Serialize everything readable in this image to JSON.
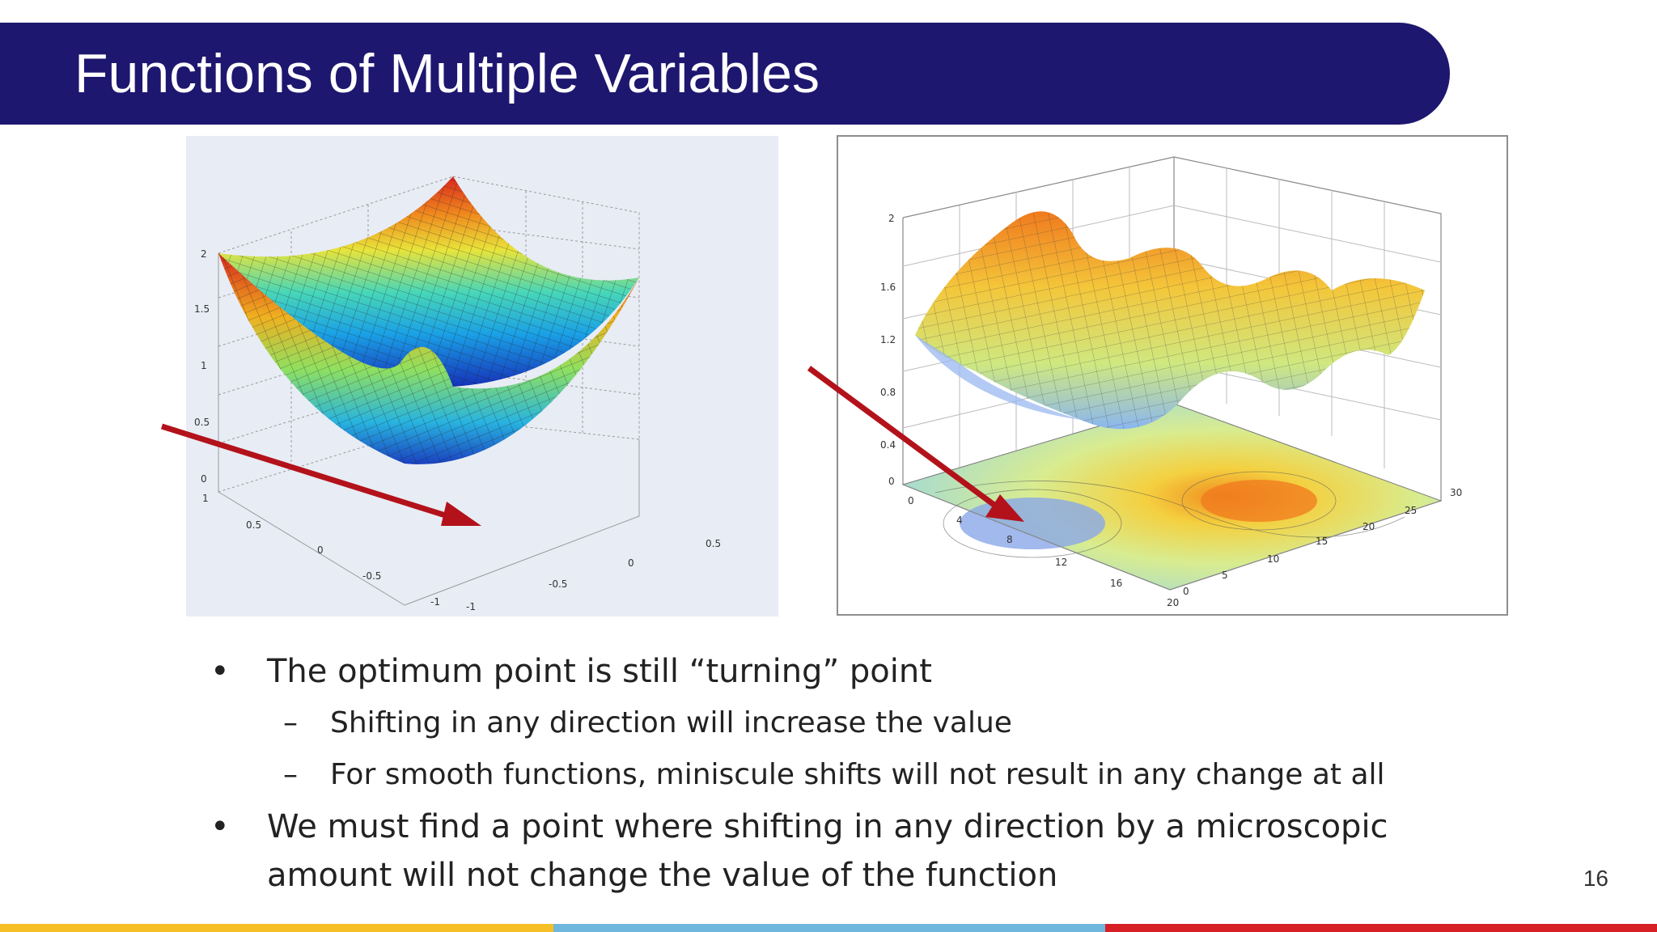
{
  "slide": {
    "title": "Functions of Multiple Variables",
    "page_number": "16"
  },
  "figures": {
    "left": {
      "z_ticks": [
        "0",
        "0.5",
        "1",
        "1.5",
        "2"
      ],
      "x_ticks": [
        "1",
        "0.5",
        "0",
        "-0.5",
        "-1"
      ],
      "y_ticks": [
        "-1",
        "-0.5",
        "0",
        "0.5"
      ]
    },
    "right": {
      "z_ticks": [
        "0",
        "0.4",
        "0.8",
        "1.2",
        "1.6",
        "2"
      ],
      "x_ticks": [
        "0",
        "4",
        "8",
        "12",
        "16",
        "20"
      ],
      "y_ticks": [
        "0",
        "5",
        "10",
        "15",
        "20",
        "25",
        "30"
      ]
    }
  },
  "bullets": [
    {
      "text": "The optimum point is still  “turning” point",
      "sub": [
        "Shifting in any direction will increase the value",
        "For smooth functions, miniscule shifts will not result in any change at all"
      ]
    },
    {
      "text": "We must find a point where shifting in any direction by a microscopic amount will not change the value of the function",
      "sub": []
    }
  ],
  "colors": {
    "header": "#1e176f",
    "arrow": "#b3121b",
    "footer": [
      "#f6bf26",
      "#6fb7dc",
      "#d71f26"
    ]
  }
}
